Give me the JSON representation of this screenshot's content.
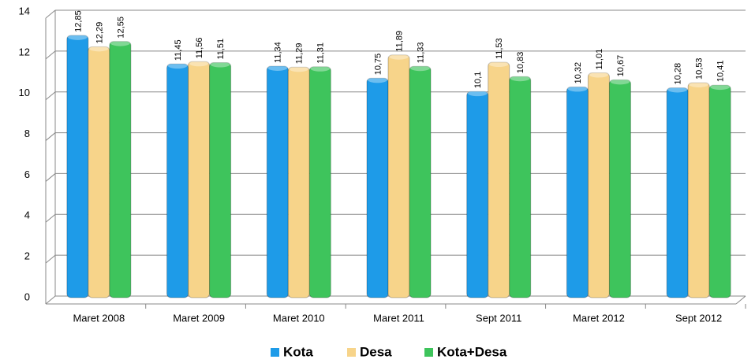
{
  "chart_data": {
    "type": "bar",
    "categories": [
      "Maret 2008",
      "Maret 2009",
      "Maret 2010",
      "Maret 2011",
      "Sept 2011",
      "Maret 2012",
      "Sept 2012"
    ],
    "series": [
      {
        "name": "Kota",
        "color": "#1e9be8",
        "values": [
          12.85,
          11.45,
          11.34,
          10.75,
          10.1,
          10.32,
          10.28
        ],
        "value_labels": [
          "12,85",
          "11,45",
          "11,34",
          "10,75",
          "10,1",
          "10,32",
          "10,28"
        ]
      },
      {
        "name": "Desa",
        "color": "#f7d48a",
        "values": [
          12.29,
          11.56,
          11.29,
          11.89,
          11.53,
          11.01,
          10.53
        ],
        "value_labels": [
          "12,29",
          "11,56",
          "11,29",
          "11,89",
          "11,53",
          "11,01",
          "10,53"
        ]
      },
      {
        "name": "Kota+Desa",
        "color": "#3ec45c",
        "values": [
          12.55,
          11.51,
          11.31,
          11.33,
          10.83,
          10.67,
          10.41
        ],
        "value_labels": [
          "12,55",
          "11,51",
          "11,31",
          "11,33",
          "10,83",
          "10,67",
          "10,41"
        ]
      }
    ],
    "ylim": [
      0,
      14
    ],
    "yticks": [
      0,
      2,
      4,
      6,
      8,
      10,
      12,
      14
    ],
    "grid": true,
    "legend": "bottom"
  }
}
